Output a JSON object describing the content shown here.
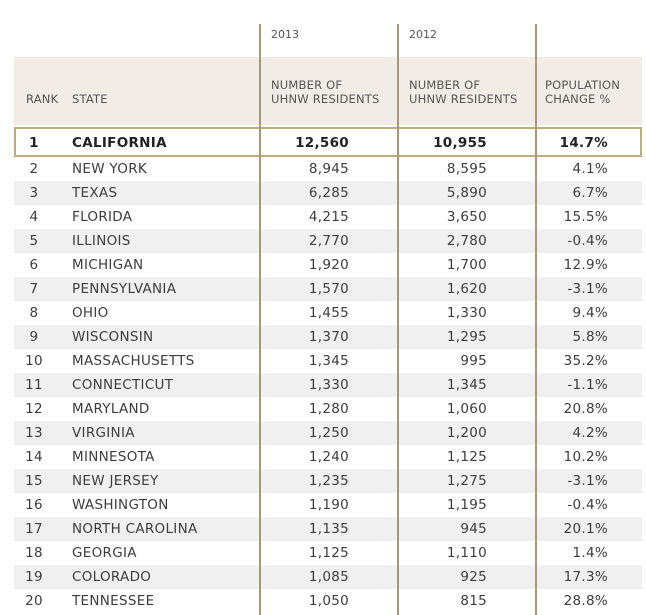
{
  "header": {
    "year_2013": "2013",
    "year_2012": "2012",
    "rank": "RANK",
    "state": "STATE",
    "col_2013_line1": "NUMBER OF",
    "col_2013_line2": "UHNW RESIDENTS",
    "col_2012_line1": "NUMBER OF",
    "col_2012_line2": "UHNW RESIDENTS",
    "change_line1": "POPULATION",
    "change_line2": "CHANGE %"
  },
  "rows": [
    {
      "rank": "1",
      "state": "CALIFORNIA",
      "v2013": "12,560",
      "v2012": "10,955",
      "change": "14.7%"
    },
    {
      "rank": "2",
      "state": "NEW YORK",
      "v2013": "8,945",
      "v2012": "8,595",
      "change": "4.1%"
    },
    {
      "rank": "3",
      "state": "TEXAS",
      "v2013": "6,285",
      "v2012": "5,890",
      "change": "6.7%"
    },
    {
      "rank": "4",
      "state": "FLORIDA",
      "v2013": "4,215",
      "v2012": "3,650",
      "change": "15.5%"
    },
    {
      "rank": "5",
      "state": "ILLINOIS",
      "v2013": "2,770",
      "v2012": "2,780",
      "change": "-0.4%"
    },
    {
      "rank": "6",
      "state": "MICHIGAN",
      "v2013": "1,920",
      "v2012": "1,700",
      "change": "12.9%"
    },
    {
      "rank": "7",
      "state": "PENNSYLVANIA",
      "v2013": "1,570",
      "v2012": "1,620",
      "change": "-3.1%"
    },
    {
      "rank": "8",
      "state": "OHIO",
      "v2013": "1,455",
      "v2012": "1,330",
      "change": "9.4%"
    },
    {
      "rank": "9",
      "state": "WISCONSIN",
      "v2013": "1,370",
      "v2012": "1,295",
      "change": "5.8%"
    },
    {
      "rank": "10",
      "state": "MASSACHUSETTS",
      "v2013": "1,345",
      "v2012": "995",
      "change": "35.2%"
    },
    {
      "rank": "11",
      "state": "CONNECTICUT",
      "v2013": "1,330",
      "v2012": "1,345",
      "change": "-1.1%"
    },
    {
      "rank": "12",
      "state": "MARYLAND",
      "v2013": "1,280",
      "v2012": "1,060",
      "change": "20.8%"
    },
    {
      "rank": "13",
      "state": "VIRGINIA",
      "v2013": "1,250",
      "v2012": "1,200",
      "change": "4.2%"
    },
    {
      "rank": "14",
      "state": "MINNESOTA",
      "v2013": "1,240",
      "v2012": "1,125",
      "change": "10.2%"
    },
    {
      "rank": "15",
      "state": "NEW JERSEY",
      "v2013": "1,235",
      "v2012": "1,275",
      "change": "-3.1%"
    },
    {
      "rank": "16",
      "state": "WASHINGTON",
      "v2013": "1,190",
      "v2012": "1,195",
      "change": "-0.4%"
    },
    {
      "rank": "17",
      "state": "NORTH CAROLINA",
      "v2013": "1,135",
      "v2012": "945",
      "change": "20.1%"
    },
    {
      "rank": "18",
      "state": "GEORGIA",
      "v2013": "1,125",
      "v2012": "1,110",
      "change": "1.4%"
    },
    {
      "rank": "19",
      "state": "COLORADO",
      "v2013": "1,085",
      "v2012": "925",
      "change": "17.3%"
    },
    {
      "rank": "20",
      "state": "TENNESSEE",
      "v2013": "1,050",
      "v2012": "815",
      "change": "28.8%"
    }
  ]
}
